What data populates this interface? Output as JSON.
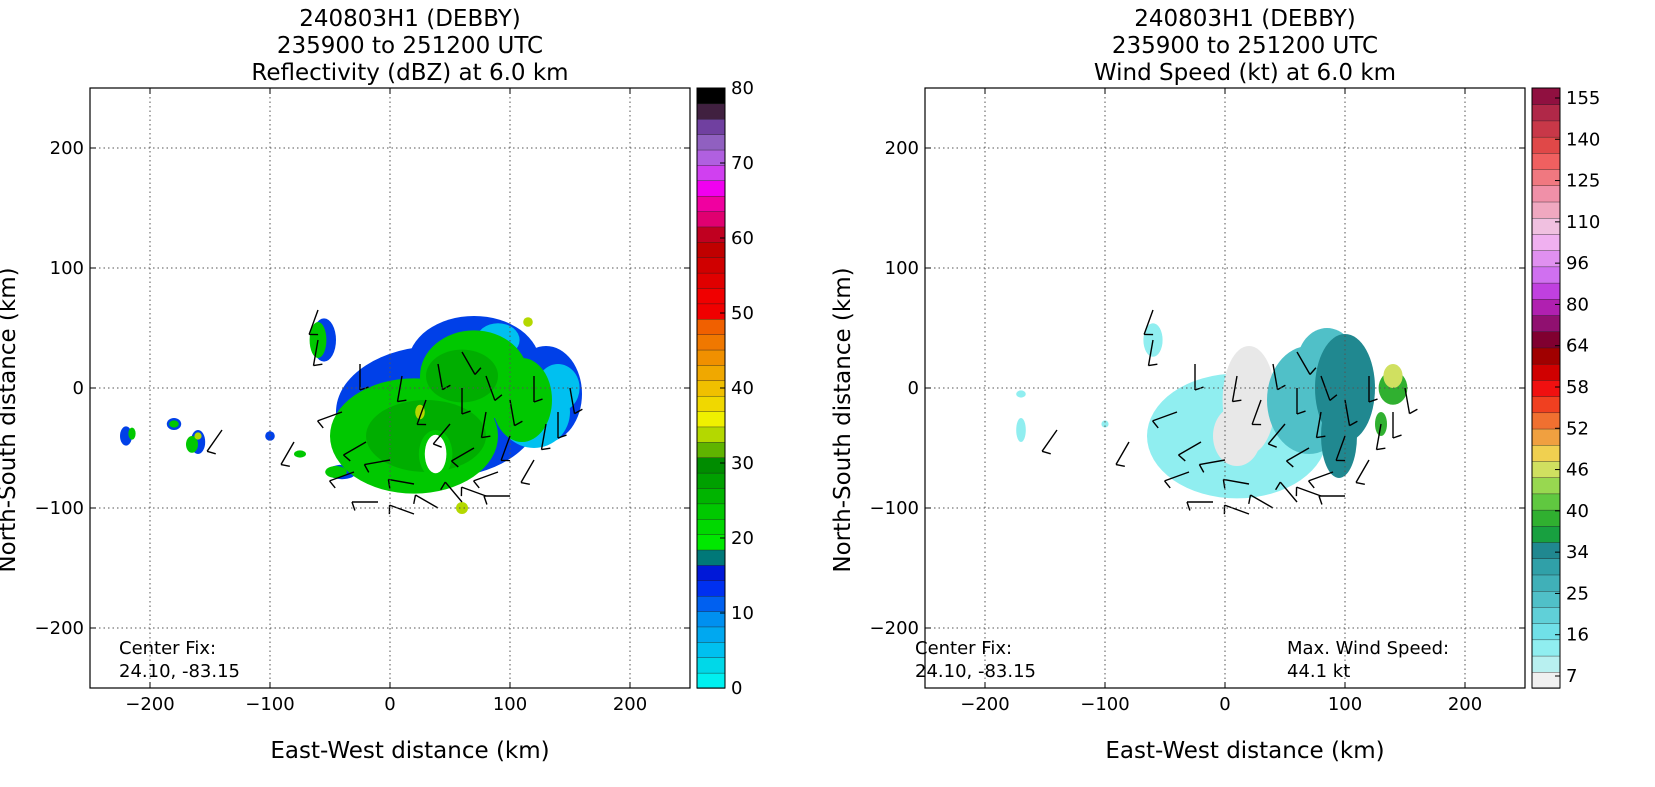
{
  "chart_data": [
    {
      "type": "heatmap",
      "title": "240803H1 (DEBBY)",
      "subtitle": "235900 to 251200 UTC",
      "subtitle2": "Reflectivity (dBZ) at 6.0 km",
      "xlabel": "East-West distance (km)",
      "ylabel": "North-South distance (km)",
      "xlim": [
        -250,
        250
      ],
      "ylim": [
        -250,
        250
      ],
      "xticks": [
        "−200",
        "−100",
        "0",
        "100",
        "200"
      ],
      "yticks": [
        "−200",
        "−100",
        "0",
        "100",
        "200"
      ],
      "grid": true,
      "annotation_left": [
        "Center Fix:",
        "24.10, -83.15"
      ],
      "colorbar": {
        "min": 0,
        "max": 80,
        "ticks": [
          "0",
          "10",
          "20",
          "30",
          "40",
          "50",
          "60",
          "70",
          "80"
        ],
        "colors": [
          "#00f0f0",
          "#00d8e8",
          "#00c0f0",
          "#00a8f0",
          "#0090f0",
          "#0060f0",
          "#0030f0",
          "#0018d8",
          "#007878",
          "#00e800",
          "#00d800",
          "#00c800",
          "#00b400",
          "#00a000",
          "#008c00",
          "#60b400",
          "#b4d800",
          "#f0f000",
          "#f0d800",
          "#f0c000",
          "#f0a800",
          "#f09000",
          "#f07800",
          "#f06000",
          "#f00000",
          "#f00000",
          "#e00000",
          "#d00000",
          "#c00000",
          "#c00020",
          "#e00070",
          "#f000a0",
          "#f000f0",
          "#d040f0",
          "#b060e0",
          "#9060c0",
          "#7040a0",
          "#402040",
          "#000000"
        ]
      }
    },
    {
      "type": "heatmap",
      "title": "240803H1 (DEBBY)",
      "subtitle": "235900 to 251200 UTC",
      "subtitle2": "Wind Speed (kt) at 6.0 km",
      "xlabel": "East-West distance (km)",
      "ylabel": "North-South distance (km)",
      "xlim": [
        -250,
        250
      ],
      "ylim": [
        -250,
        250
      ],
      "xticks": [
        "−200",
        "−100",
        "0",
        "100",
        "200"
      ],
      "yticks": [
        "−200",
        "−100",
        "0",
        "100",
        "200"
      ],
      "grid": true,
      "annotation_left": [
        "Center Fix:",
        "24.10, -83.15"
      ],
      "annotation_right": [
        "Max. Wind Speed:",
        "44.1 kt"
      ],
      "colorbar": {
        "ticks": [
          "7",
          "16",
          "25",
          "34",
          "40",
          "46",
          "52",
          "58",
          "64",
          "80",
          "96",
          "110",
          "125",
          "140",
          "155"
        ],
        "colors": [
          "#f0f0f0",
          "#b8f0f0",
          "#90eef0",
          "#70e0e8",
          "#60d0d8",
          "#50c0c8",
          "#40b0b8",
          "#30a0a8",
          "#208890",
          "#18a040",
          "#30b030",
          "#60c840",
          "#98d850",
          "#d0e060",
          "#f0d050",
          "#f0a040",
          "#f07030",
          "#f04020",
          "#f01010",
          "#d00000",
          "#a00000",
          "#800030",
          "#901070",
          "#b020b0",
          "#c040e0",
          "#d070f0",
          "#e090f0",
          "#f0b0f0",
          "#f0c0e0",
          "#f0a8c0",
          "#f090a8",
          "#f07880",
          "#f06060",
          "#e04848",
          "#c83848",
          "#b02848",
          "#901040"
        ]
      }
    }
  ]
}
